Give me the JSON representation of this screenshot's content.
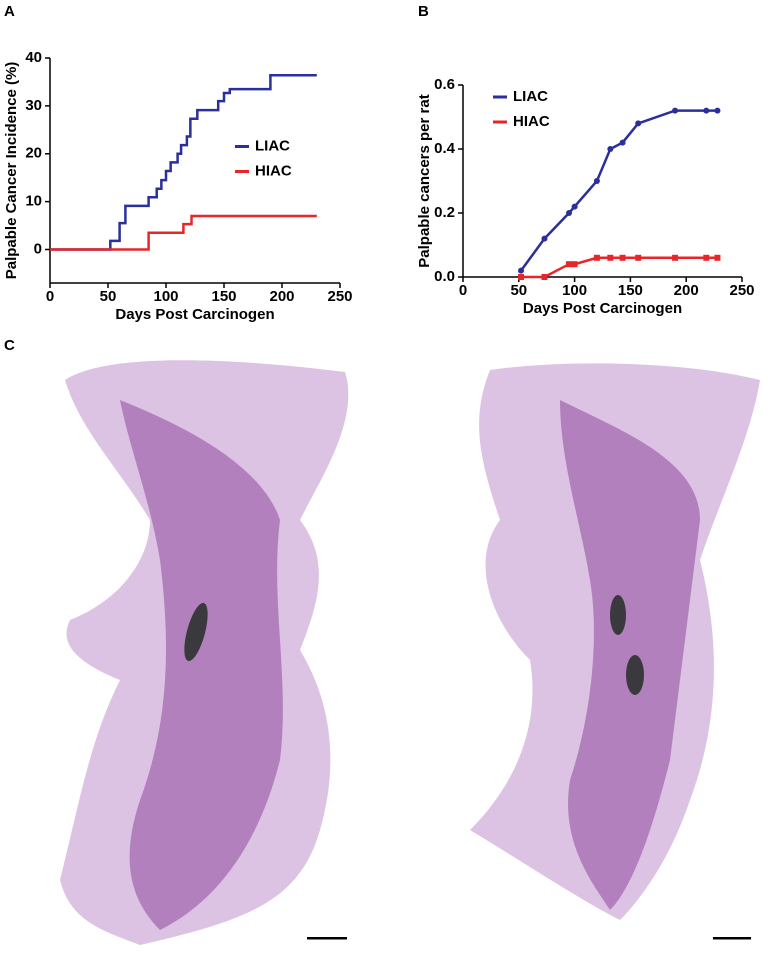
{
  "panel_labels": [
    "A",
    "B",
    "C"
  ],
  "chart_data": [
    {
      "type": "line",
      "step": true,
      "markers": false,
      "xlabel": "Days Post Carcinogen",
      "ylabel": "Palpable Cancer Incidence (%)",
      "xlim": [
        0,
        250
      ],
      "ylim": [
        -7,
        40
      ],
      "xticks": [
        0,
        50,
        100,
        150,
        200,
        250
      ],
      "yticks": [
        0,
        10,
        20,
        30,
        40
      ],
      "legend": "center-right",
      "series": [
        {
          "name": "LIAC",
          "color": "#2a2f9c",
          "x": [
            0,
            52,
            60,
            65,
            85,
            92,
            96,
            100,
            104,
            110,
            113,
            118,
            121,
            127,
            145,
            150,
            155,
            190,
            230
          ],
          "values": [
            0,
            1.8,
            5.5,
            9.1,
            10.9,
            12.7,
            14.5,
            16.4,
            18.2,
            20,
            21.8,
            23.6,
            27.3,
            29.1,
            31,
            32.7,
            33.5,
            36.4,
            36.4
          ]
        },
        {
          "name": "HIAC",
          "color": "#e8262a",
          "x": [
            0,
            85,
            115,
            122,
            230
          ],
          "values": [
            0,
            3.5,
            5.3,
            7,
            7
          ]
        }
      ]
    },
    {
      "type": "line",
      "step": false,
      "markers": true,
      "xlabel": "Days Post Carcinogen",
      "ylabel": "Palpable cancers per rat",
      "xlim": [
        0,
        250
      ],
      "ylim": [
        0,
        0.6
      ],
      "xticks": [
        0,
        50,
        100,
        150,
        200,
        250
      ],
      "yticks": [
        {
          "value": 0,
          "label": "0.0"
        },
        0.2,
        0.4,
        0.6
      ],
      "legend": "upper-left",
      "series": [
        {
          "name": "LIAC",
          "color": "#2a2f9c",
          "x": [
            52,
            73,
            95,
            100,
            120,
            132,
            143,
            157,
            190,
            218,
            228
          ],
          "values": [
            0.02,
            0.12,
            0.2,
            0.22,
            0.3,
            0.4,
            0.42,
            0.48,
            0.52,
            0.52,
            0.52
          ]
        },
        {
          "name": "HIAC",
          "color": "#e8262a",
          "x": [
            52,
            73,
            95,
            100,
            120,
            132,
            143,
            157,
            190,
            218,
            228
          ],
          "values": [
            0,
            0,
            0.04,
            0.04,
            0.06,
            0.06,
            0.06,
            0.06,
            0.06,
            0.06,
            0.06
          ]
        }
      ]
    }
  ]
}
